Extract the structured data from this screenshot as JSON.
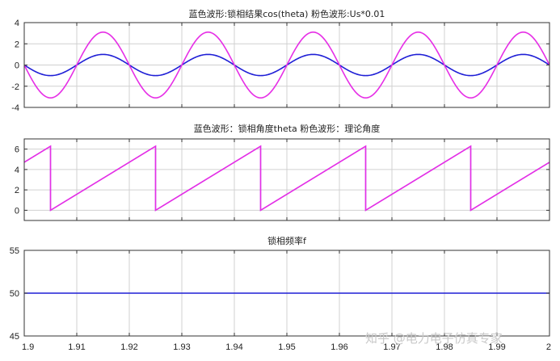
{
  "chart_data": [
    {
      "type": "line",
      "title": "蓝色波形:锁相结果cos(theta)  粉色波形:Us*0.01",
      "xlim": [
        1.9,
        2.0
      ],
      "ylim": [
        -4,
        4
      ],
      "yticks": [
        -4,
        -2,
        0,
        2,
        4
      ],
      "xticks": [
        1.9,
        1.91,
        1.92,
        1.93,
        1.94,
        1.95,
        1.96,
        1.97,
        1.98,
        1.99,
        2.0
      ],
      "xtick_labels": [],
      "grid": true,
      "frequency_hz": 50,
      "series": [
        {
          "color": "#1f1fd6",
          "amplitude": 1.0,
          "values_at": {
            "1.9": -0.31,
            "1.905": 0.31,
            "1.91": 0.81,
            "1.915": 1.0,
            "1.92": 0.81
          }
        },
        {
          "color": "#e62ee6",
          "amplitude": 3.1,
          "values_at": {
            "1.9": -0.96,
            "1.905": 0.96,
            "1.91": 2.51,
            "1.915": 3.1,
            "1.92": 2.51
          }
        }
      ]
    },
    {
      "type": "line",
      "title": "蓝色波形：锁相角度theta  粉色波形：理论角度",
      "xlim": [
        1.9,
        2.0
      ],
      "ylim": [
        -1,
        7
      ],
      "yticks": [
        0,
        2,
        4,
        6
      ],
      "xticks": [
        1.9,
        1.91,
        1.92,
        1.93,
        1.94,
        1.95,
        1.96,
        1.97,
        1.98,
        1.99,
        2.0
      ],
      "xtick_labels": [],
      "grid": true,
      "series": [
        {
          "color": "#1f1fd6",
          "shape": "sawtooth",
          "min": 0,
          "max": 6.2832,
          "resets_at_x": [
            1.905,
            1.925,
            1.945,
            1.965,
            1.985
          ]
        },
        {
          "color": "#e62ee6",
          "shape": "sawtooth",
          "min": 0,
          "max": 6.2832,
          "resets_at_x": [
            1.905,
            1.925,
            1.945,
            1.965,
            1.985
          ]
        }
      ]
    },
    {
      "type": "line",
      "title": "锁相频率f",
      "xlim": [
        1.9,
        2.0
      ],
      "ylim": [
        45,
        55
      ],
      "yticks": [
        45,
        50,
        55
      ],
      "xticks": [
        1.9,
        1.91,
        1.92,
        1.93,
        1.94,
        1.95,
        1.96,
        1.97,
        1.98,
        1.99,
        2.0
      ],
      "xtick_labels": [
        "1.9",
        "1.91",
        "1.92",
        "1.93",
        "1.94",
        "1.95",
        "1.96",
        "1.97",
        "1.98",
        "1.99",
        "2"
      ],
      "grid": true,
      "series": [
        {
          "color": "#1f1fd6",
          "x": [
            1.9,
            2.0
          ],
          "y": [
            50.0,
            50.0
          ]
        }
      ]
    }
  ],
  "watermark": "知乎 @电力电子仿真专家"
}
